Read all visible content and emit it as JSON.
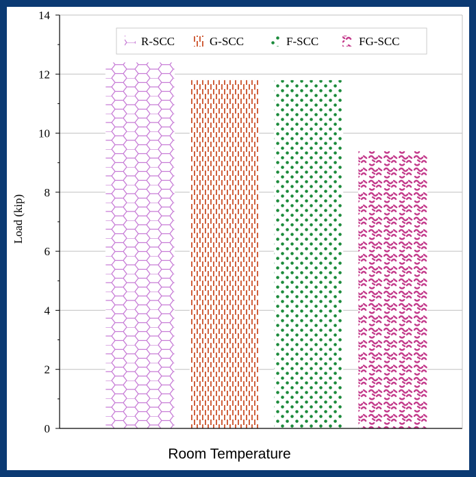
{
  "chart_data": {
    "type": "bar",
    "title": "",
    "xlabel": "Room Temperature",
    "ylabel": "Load (kip)",
    "ylim": [
      0,
      14
    ],
    "yticks": [
      "0",
      "2",
      "4",
      "6",
      "8",
      "10",
      "12",
      "14"
    ],
    "grid": true,
    "legend_position": "top",
    "series": [
      {
        "name": "R-SCC",
        "value": 12.4,
        "color": "#c77bd6",
        "pattern": "hexagon-brick"
      },
      {
        "name": "G-SCC",
        "value": 11.8,
        "color": "#d0603c",
        "pattern": "vertical-dashes"
      },
      {
        "name": "F-SCC",
        "value": 11.8,
        "color": "#1a8a3a",
        "pattern": "dots"
      },
      {
        "name": "FG-SCC",
        "value": 9.4,
        "color": "#c43c8c",
        "pattern": "squiggle"
      }
    ]
  },
  "colors": {
    "frame_border": "#0b3a73",
    "background": "#ffffff",
    "gridline": "#bfbfbf",
    "axis": "#000000"
  }
}
